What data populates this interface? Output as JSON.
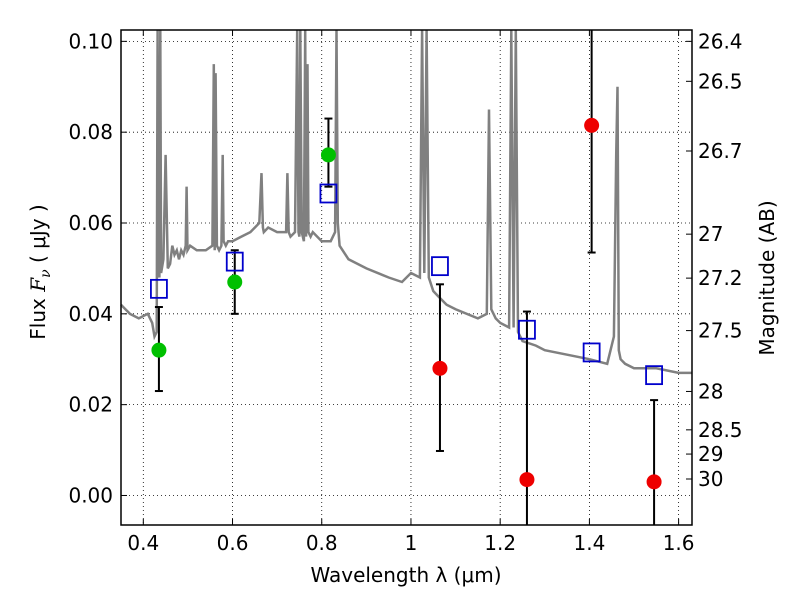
{
  "chart_data": {
    "type": "scatter",
    "xlabel": "Wavelength  λ (μm)",
    "ylabel_prefix": "Flux  ",
    "ylabel_symbol": "F",
    "ylabel_subscript": "ν",
    "ylabel_unit": "  ( μJy )",
    "y2label": "Magnitude (AB)",
    "xlim": [
      0.35,
      1.63
    ],
    "ylim": [
      -0.0065,
      0.1025
    ],
    "grid": true,
    "x_ticks": [
      {
        "value": 0.4,
        "label": "0.4"
      },
      {
        "value": 0.6,
        "label": "0.6"
      },
      {
        "value": 0.8,
        "label": "0.8"
      },
      {
        "value": 1.0,
        "label": "1"
      },
      {
        "value": 1.2,
        "label": "1.2"
      },
      {
        "value": 1.4,
        "label": "1.4"
      },
      {
        "value": 1.6,
        "label": "1.6"
      }
    ],
    "y_ticks": [
      {
        "value": 0.0,
        "label": "0.00"
      },
      {
        "value": 0.02,
        "label": "0.02"
      },
      {
        "value": 0.04,
        "label": "0.04"
      },
      {
        "value": 0.06,
        "label": "0.06"
      },
      {
        "value": 0.08,
        "label": "0.08"
      },
      {
        "value": 0.1,
        "label": "0.10"
      }
    ],
    "magnitude_ticks": [
      {
        "mag": 26.4,
        "label": "26.4"
      },
      {
        "mag": 26.5,
        "label": "26.5"
      },
      {
        "mag": 26.7,
        "label": "26.7"
      },
      {
        "mag": 27.0,
        "label": "27"
      },
      {
        "mag": 27.2,
        "label": "27.2"
      },
      {
        "mag": 27.5,
        "label": "27.5"
      },
      {
        "mag": 28.0,
        "label": "28"
      },
      {
        "mag": 28.5,
        "label": "28.5"
      },
      {
        "mag": 29.0,
        "label": "29"
      },
      {
        "mag": 30.0,
        "label": "30"
      }
    ],
    "series": [
      {
        "name": "model spectrum",
        "kind": "line",
        "color": "#808080",
        "x": [
          0.35,
          0.37,
          0.39,
          0.41,
          0.42,
          0.425,
          0.43,
          0.432,
          0.434,
          0.436,
          0.438,
          0.44,
          0.445,
          0.45,
          0.455,
          0.46,
          0.465,
          0.47,
          0.475,
          0.48,
          0.485,
          0.49,
          0.495,
          0.497,
          0.499,
          0.505,
          0.52,
          0.54,
          0.555,
          0.558,
          0.56,
          0.562,
          0.565,
          0.57,
          0.575,
          0.578,
          0.58,
          0.585,
          0.59,
          0.6,
          0.62,
          0.64,
          0.66,
          0.665,
          0.668,
          0.67,
          0.68,
          0.7,
          0.72,
          0.723,
          0.726,
          0.73,
          0.74,
          0.745,
          0.748,
          0.75,
          0.752,
          0.755,
          0.76,
          0.763,
          0.765,
          0.768,
          0.77,
          0.775,
          0.78,
          0.8,
          0.82,
          0.83,
          0.833,
          0.836,
          0.84,
          0.86,
          0.9,
          0.95,
          0.98,
          1.0,
          1.02,
          1.025,
          1.03,
          1.035,
          1.04,
          1.05,
          1.06,
          1.08,
          1.1,
          1.15,
          1.17,
          1.175,
          1.18,
          1.185,
          1.19,
          1.2,
          1.22,
          1.225,
          1.23,
          1.235,
          1.24,
          1.25,
          1.28,
          1.3,
          1.35,
          1.4,
          1.44,
          1.455,
          1.46,
          1.463,
          1.466,
          1.47,
          1.48,
          1.5,
          1.55,
          1.6,
          1.63
        ],
        "y": [
          0.042,
          0.04,
          0.039,
          0.04,
          0.038,
          0.035,
          0.036,
          0.11,
          0.05,
          0.048,
          0.11,
          0.049,
          0.052,
          0.075,
          0.05,
          0.051,
          0.055,
          0.053,
          0.054,
          0.052,
          0.054,
          0.053,
          0.055,
          0.068,
          0.054,
          0.055,
          0.054,
          0.054,
          0.055,
          0.095,
          0.054,
          0.093,
          0.055,
          0.054,
          0.055,
          0.075,
          0.056,
          0.055,
          0.056,
          0.056,
          0.057,
          0.058,
          0.06,
          0.071,
          0.059,
          0.058,
          0.059,
          0.058,
          0.058,
          0.071,
          0.058,
          0.057,
          0.058,
          0.11,
          0.058,
          0.057,
          0.11,
          0.058,
          0.056,
          0.11,
          0.057,
          0.095,
          0.058,
          0.057,
          0.058,
          0.056,
          0.056,
          0.058,
          0.11,
          0.06,
          0.055,
          0.052,
          0.05,
          0.048,
          0.047,
          0.049,
          0.048,
          0.11,
          0.049,
          0.11,
          0.048,
          0.045,
          0.044,
          0.042,
          0.041,
          0.039,
          0.04,
          0.085,
          0.041,
          0.04,
          0.039,
          0.038,
          0.037,
          0.11,
          0.037,
          0.11,
          0.036,
          0.034,
          0.033,
          0.032,
          0.031,
          0.03,
          0.029,
          0.035,
          0.075,
          0.09,
          0.032,
          0.03,
          0.029,
          0.028,
          0.028,
          0.027,
          0.027
        ]
      },
      {
        "name": "model band fluxes",
        "kind": "open-square",
        "color": "#0000cc",
        "x": [
          0.435,
          0.605,
          0.815,
          1.065,
          1.26,
          1.405,
          1.545
        ],
        "y": [
          0.0455,
          0.0515,
          0.0665,
          0.0505,
          0.0365,
          0.0315,
          0.0265
        ]
      },
      {
        "name": "observed fluxes",
        "kind": "point-errorbar",
        "x": [
          0.435,
          0.605,
          0.815,
          1.065,
          1.26,
          1.405,
          1.545
        ],
        "y": [
          0.032,
          0.047,
          0.075,
          0.028,
          0.0035,
          0.0815,
          0.003
        ],
        "yerr_low": [
          0.023,
          0.04,
          0.068,
          0.0098,
          -0.0065,
          0.0535,
          -0.0065
        ],
        "yerr_high": [
          0.0415,
          0.054,
          0.083,
          0.0465,
          0.0405,
          0.1025,
          0.021
        ],
        "colors": [
          "#00c000",
          "#00c000",
          "#00c000",
          "#ee0000",
          "#ee0000",
          "#ee0000",
          "#ee0000"
        ]
      }
    ]
  }
}
